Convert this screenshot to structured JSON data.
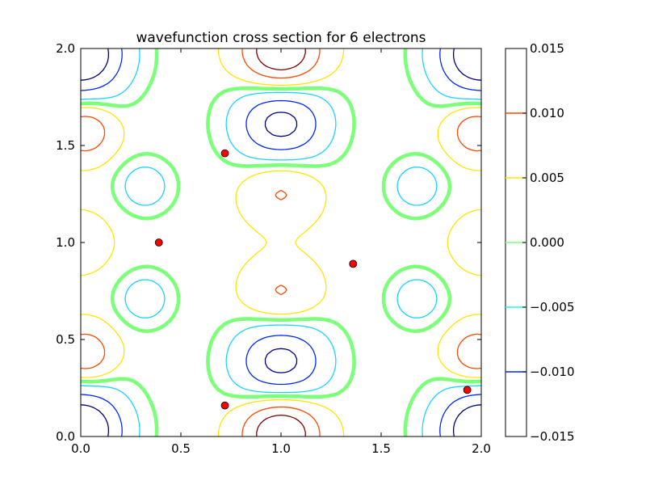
{
  "chart_data": {
    "type": "contour",
    "title": "wavefunction cross section for 6 electrons",
    "xlabel": "",
    "ylabel": "",
    "xlim": [
      0.0,
      2.0
    ],
    "ylim": [
      0.0,
      2.0
    ],
    "x_ticks": [
      "0.0",
      "0.5",
      "1.0",
      "1.5",
      "2.0"
    ],
    "y_ticks": [
      "0.0",
      "0.5",
      "1.0",
      "1.5",
      "2.0"
    ],
    "grid": false,
    "colorbar": {
      "levels": [
        -0.015,
        -0.01,
        -0.005,
        0.0,
        0.005,
        0.01,
        0.015
      ],
      "labels": [
        "−0.015",
        "−0.010",
        "−0.005",
        "0.000",
        "0.005",
        "0.010",
        "0.015"
      ],
      "colors": [
        "#00007f",
        "#0028ff",
        "#19ffe2",
        "#7cff79",
        "#ffe600",
        "#ff4800",
        "#7f0000"
      ]
    },
    "levels": [
      -0.0125,
      -0.0075,
      -0.0025,
      0.0,
      0.0025,
      0.0075,
      0.0125
    ],
    "level_colors": [
      "#00007f",
      "#0028ff",
      "#19d4ff",
      "#7dff7a",
      "#ffe600",
      "#ff4800",
      "#7f0000"
    ],
    "zero_level_color": "#7cff79",
    "electrons": {
      "color": "#ff0000",
      "points": [
        {
          "x": 0.72,
          "y": 1.46
        },
        {
          "x": 0.39,
          "y": 1.0
        },
        {
          "x": 1.36,
          "y": 0.89
        },
        {
          "x": 0.72,
          "y": 0.16
        },
        {
          "x": 1.93,
          "y": 0.24
        }
      ]
    }
  }
}
